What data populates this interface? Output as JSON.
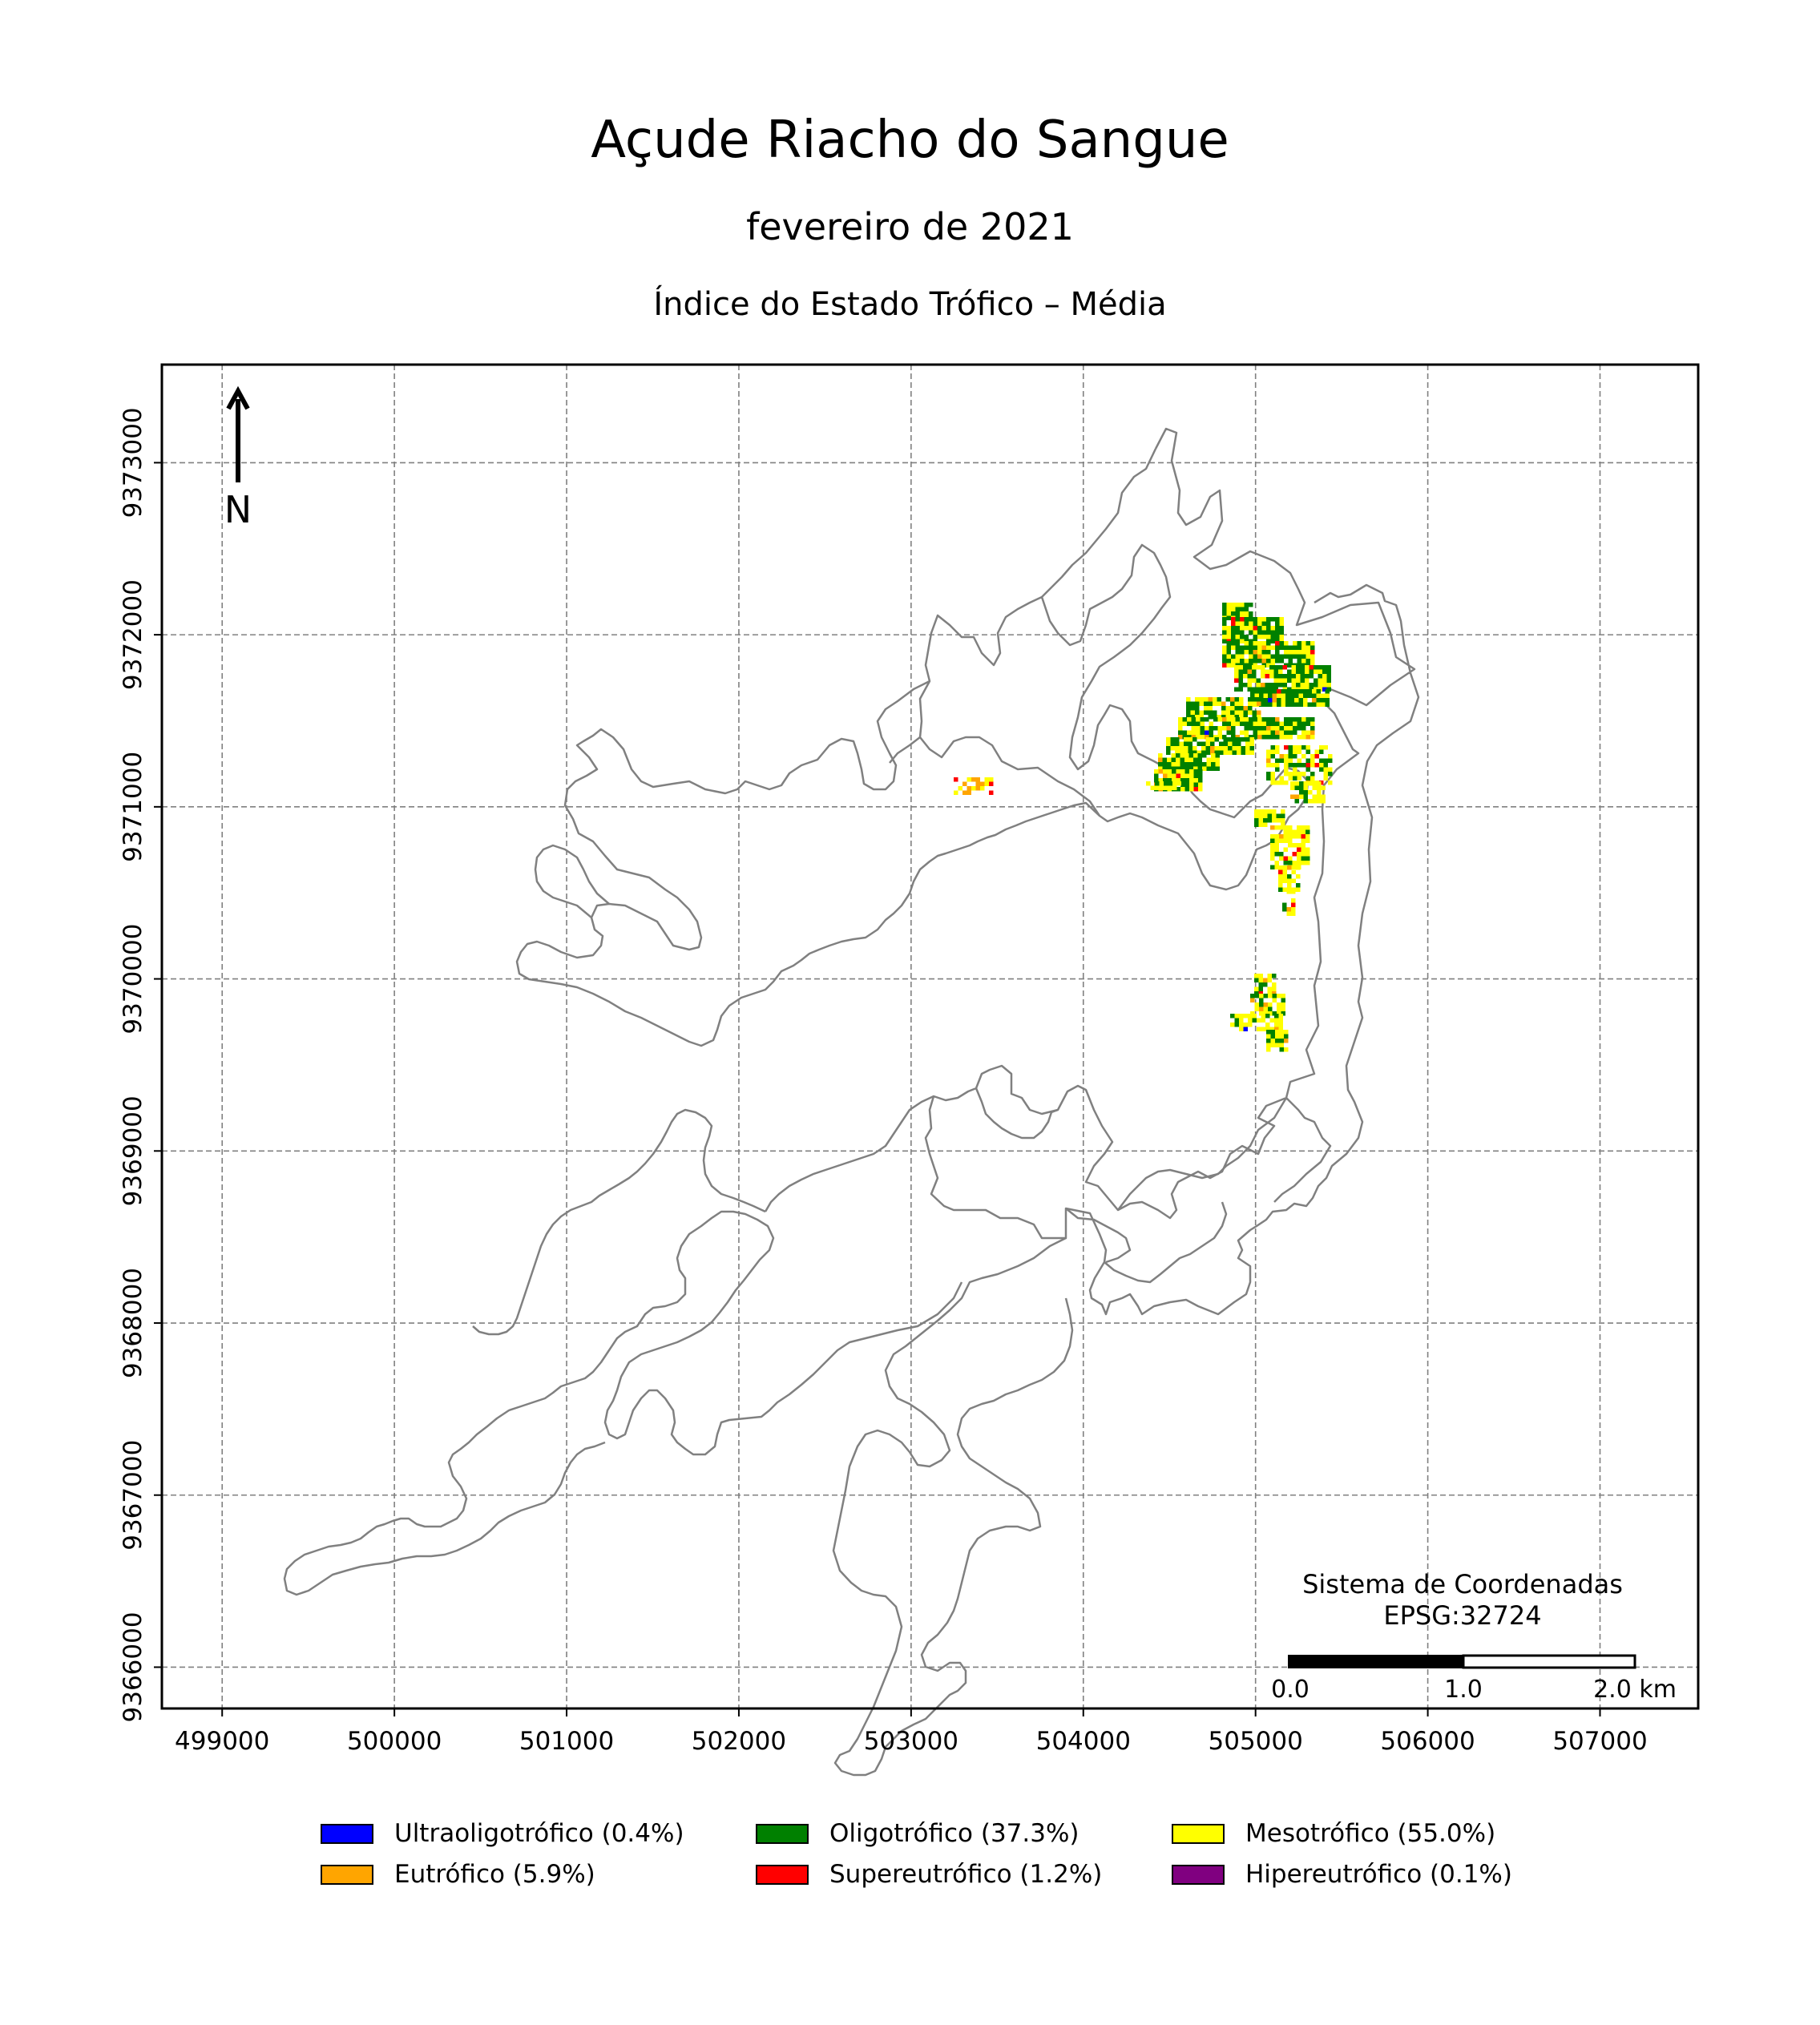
{
  "title": "Açude Riacho do Sangue",
  "subtitle": "fevereiro de 2021",
  "map_title": "Índice do Estado Trófico – Média",
  "north_arrow": {
    "label": "N"
  },
  "crs": {
    "line1": "Sistema de Coordenadas",
    "line2": "EPSG:32724"
  },
  "scale_bar": {
    "labels": [
      "0.0",
      "1.0",
      "2.0 km"
    ]
  },
  "axes": {
    "x_ticks": [
      "499000",
      "500000",
      "501000",
      "502000",
      "503000",
      "504000",
      "505000",
      "506000",
      "507000"
    ],
    "y_ticks": [
      "9366000",
      "9367000",
      "9368000",
      "9369000",
      "9370000",
      "9371000",
      "9372000",
      "9373000"
    ],
    "xlim": [
      498650,
      507570
    ],
    "ylim": [
      9365760,
      9373570
    ],
    "grid": true
  },
  "legend": [
    {
      "label": "Ultraoligotrófico (0.4%)",
      "color": "#0000ff",
      "percent": 0.4
    },
    {
      "label": "Oligotrófico (37.3%)",
      "color": "#008000",
      "percent": 37.3
    },
    {
      "label": "Mesotrófico (55.0%)",
      "color": "#ffff00",
      "percent": 55.0
    },
    {
      "label": "Eutrófico (5.9%)",
      "color": "#ffa500",
      "percent": 5.9
    },
    {
      "label": "Supereutrófico (1.2%)",
      "color": "#ff0000",
      "percent": 1.2
    },
    {
      "label": "Hipereutrófico (0.1%)",
      "color": "#800080",
      "percent": 0.1
    }
  ],
  "colors": {
    "outline": "#808080",
    "grid": "#808080"
  }
}
